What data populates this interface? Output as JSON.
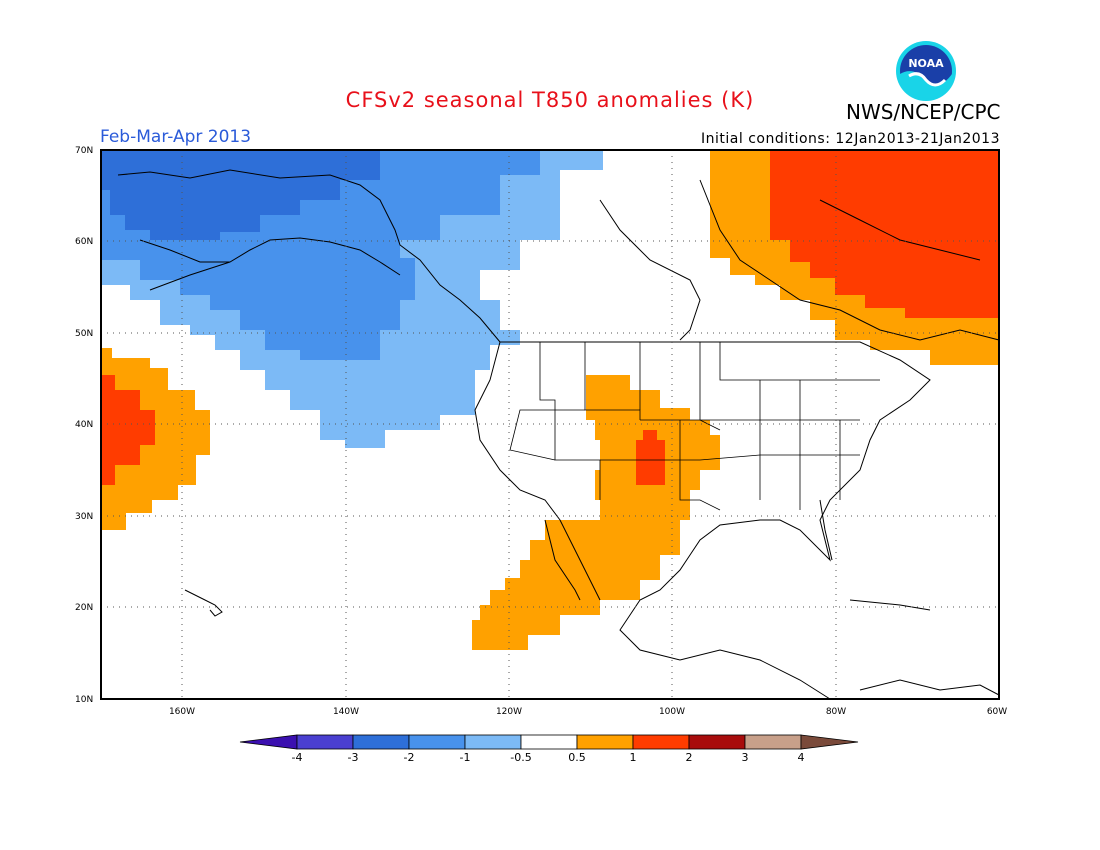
{
  "header": {
    "title": "CFSv2 seasonal T850 anomalies (K)",
    "agency": "NWS/NCEP/CPC",
    "period": "Feb-Mar-Apr 2013",
    "initial_conditions": "Initial conditions: 12Jan2013-21Jan2013",
    "logo_text": "NOAA"
  },
  "map": {
    "lat_labels": [
      "70N",
      "60N",
      "50N",
      "40N",
      "30N",
      "20N",
      "10N"
    ],
    "lon_labels": [
      "160W",
      "140W",
      "120W",
      "100W",
      "80W",
      "60W"
    ],
    "lat_range": [
      10,
      70
    ],
    "lon_range": [
      -170,
      -60
    ],
    "gridlines": "dotted"
  },
  "colorbar": {
    "labels": [
      "-4",
      "-3",
      "-2",
      "-1",
      "-0.5",
      "0.5",
      "1",
      "2",
      "3",
      "4"
    ],
    "colors": [
      "#3b10b0",
      "#4a3fd0",
      "#2e6fd8",
      "#4892ec",
      "#7cbaf6",
      "#ffffff",
      "#ffa100",
      "#ff3c00",
      "#a80c0c",
      "#c8a08a",
      "#7a4a3a"
    ]
  },
  "anomaly_colors": {
    "cold_strong": "#2e6fd8",
    "cold": "#4892ec",
    "cold_weak": "#7cbaf6",
    "warm_weak": "#ffa100",
    "warm": "#ff3c00"
  }
}
